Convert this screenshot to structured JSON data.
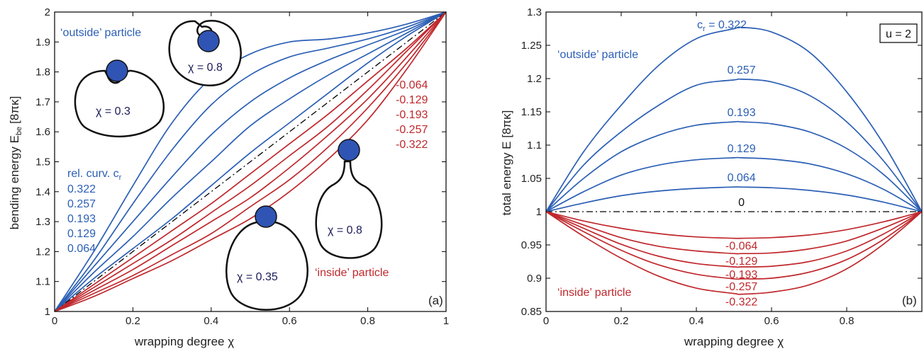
{
  "colors": {
    "outside": "#2b5fb5",
    "inside": "#c0282d",
    "reference": "#000000",
    "particle": "#2f54b4"
  },
  "chart_data": [
    {
      "type": "line",
      "panel_label": "(a)",
      "xlabel": "wrapping degree χ",
      "ylabel_main": "bending energy  E",
      "ylabel_sub": "be",
      "ylabel_unit": "[8πκ]",
      "xlim": [
        0,
        1
      ],
      "ylim": [
        1,
        2
      ],
      "xticks": [
        "0",
        "0.2",
        "0.4",
        "0.6",
        "0.8",
        "1"
      ],
      "yticks": [
        "1",
        "1.1",
        "1.2",
        "1.3",
        "1.4",
        "1.5",
        "1.6",
        "1.7",
        "1.8",
        "1.9",
        "2"
      ],
      "outside_label": "‘outside’ particle",
      "inside_label": "‘inside’ particle",
      "legend_title_main": "rel. curv. c",
      "legend_title_sub": "r",
      "outside_values": [
        "0.322",
        "0.257",
        "0.193",
        "0.129",
        "0.064"
      ],
      "inside_values": [
        "-0.064",
        "-0.129",
        "-0.193",
        "-0.257",
        "-0.322"
      ],
      "insets": [
        {
          "label": "χ = 0.3",
          "kind": "outside"
        },
        {
          "label": "χ = 0.8",
          "kind": "outside"
        },
        {
          "label": "χ = 0.35",
          "kind": "inside"
        },
        {
          "label": "χ = 0.8",
          "kind": "inside"
        }
      ],
      "x": [
        0,
        0.1,
        0.2,
        0.3,
        0.4,
        0.5,
        0.6,
        0.7,
        0.8,
        0.9,
        1.0
      ],
      "series": [
        {
          "c_r": 0.322,
          "kind": "outside",
          "values": [
            1.0,
            1.2,
            1.42,
            1.63,
            1.78,
            1.86,
            1.9,
            1.91,
            1.93,
            1.96,
            2.0
          ]
        },
        {
          "c_r": 0.257,
          "kind": "outside",
          "values": [
            1.0,
            1.17,
            1.36,
            1.54,
            1.69,
            1.79,
            1.85,
            1.88,
            1.91,
            1.95,
            2.0
          ]
        },
        {
          "c_r": 0.193,
          "kind": "outside",
          "values": [
            1.0,
            1.15,
            1.3,
            1.45,
            1.59,
            1.7,
            1.78,
            1.84,
            1.89,
            1.94,
            2.0
          ]
        },
        {
          "c_r": 0.129,
          "kind": "outside",
          "values": [
            1.0,
            1.13,
            1.25,
            1.38,
            1.5,
            1.62,
            1.71,
            1.79,
            1.86,
            1.93,
            2.0
          ]
        },
        {
          "c_r": 0.064,
          "kind": "outside",
          "values": [
            1.0,
            1.11,
            1.21,
            1.31,
            1.42,
            1.53,
            1.63,
            1.73,
            1.83,
            1.92,
            2.0
          ]
        },
        {
          "c_r": 0,
          "kind": "reference",
          "values": [
            1.0,
            1.1,
            1.2,
            1.3,
            1.4,
            1.5,
            1.6,
            1.7,
            1.8,
            1.9,
            2.0
          ]
        },
        {
          "c_r": -0.064,
          "kind": "inside",
          "values": [
            1.0,
            1.09,
            1.18,
            1.27,
            1.36,
            1.46,
            1.56,
            1.66,
            1.77,
            1.88,
            2.0
          ]
        },
        {
          "c_r": -0.129,
          "kind": "inside",
          "values": [
            1.0,
            1.08,
            1.16,
            1.24,
            1.33,
            1.42,
            1.52,
            1.62,
            1.74,
            1.87,
            2.0
          ]
        },
        {
          "c_r": -0.193,
          "kind": "inside",
          "values": [
            1.0,
            1.07,
            1.14,
            1.22,
            1.3,
            1.38,
            1.48,
            1.59,
            1.71,
            1.85,
            2.0
          ]
        },
        {
          "c_r": -0.257,
          "kind": "inside",
          "values": [
            1.0,
            1.06,
            1.12,
            1.19,
            1.26,
            1.35,
            1.44,
            1.55,
            1.68,
            1.83,
            2.0
          ]
        },
        {
          "c_r": -0.322,
          "kind": "inside",
          "values": [
            1.0,
            1.05,
            1.11,
            1.17,
            1.24,
            1.31,
            1.4,
            1.51,
            1.64,
            1.81,
            2.0
          ]
        }
      ]
    },
    {
      "type": "line",
      "panel_label": "(b)",
      "xlabel": "wrapping degree χ",
      "ylabel": "total energy  E  [8πκ]",
      "xlim": [
        0,
        1
      ],
      "ylim": [
        0.85,
        1.3
      ],
      "xticks": [
        "0",
        "0.2",
        "0.4",
        "0.6",
        "0.8"
      ],
      "yticks": [
        "0.85",
        "0.9",
        "0.95",
        "1",
        "1.05",
        "1.1",
        "1.15",
        "1.2",
        "1.25",
        "1.3"
      ],
      "parameter_box": "u = 2",
      "outside_label": "‘outside’ particle",
      "inside_label": "‘inside’ particle",
      "top_label_main": "c",
      "top_label_sub": "r",
      "top_label_value": " = 0.322",
      "x": [
        0,
        0.1,
        0.2,
        0.3,
        0.4,
        0.5,
        0.52,
        0.6,
        0.7,
        0.8,
        0.9,
        1.0
      ],
      "series": [
        {
          "c_r": 0.322,
          "kind": "outside",
          "label": "",
          "values": [
            1.0,
            1.09,
            1.16,
            1.22,
            1.26,
            1.275,
            1.277,
            1.27,
            1.24,
            1.18,
            1.1,
            1.0
          ]
        },
        {
          "c_r": 0.257,
          "kind": "outside",
          "label": "0.257",
          "values": [
            1.0,
            1.07,
            1.12,
            1.16,
            1.19,
            1.198,
            1.199,
            1.195,
            1.175,
            1.135,
            1.075,
            1.0
          ]
        },
        {
          "c_r": 0.193,
          "kind": "outside",
          "label": "0.193",
          "values": [
            1.0,
            1.05,
            1.09,
            1.115,
            1.13,
            1.135,
            1.135,
            1.132,
            1.12,
            1.095,
            1.055,
            1.0
          ]
        },
        {
          "c_r": 0.129,
          "kind": "outside",
          "label": "0.129",
          "values": [
            1.0,
            1.03,
            1.055,
            1.07,
            1.078,
            1.081,
            1.081,
            1.079,
            1.072,
            1.057,
            1.033,
            1.0
          ]
        },
        {
          "c_r": 0.064,
          "kind": "outside",
          "label": "0.064",
          "values": [
            1.0,
            1.013,
            1.024,
            1.031,
            1.035,
            1.037,
            1.037,
            1.036,
            1.032,
            1.025,
            1.014,
            1.0
          ]
        },
        {
          "c_r": 0,
          "kind": "reference",
          "label": "0",
          "values": [
            1.0,
            1.0,
            1.0,
            1.0,
            1.0,
            1.0,
            1.0,
            1.0,
            1.0,
            1.0,
            1.0,
            1.0
          ]
        },
        {
          "c_r": -0.064,
          "kind": "inside",
          "label": "-0.064",
          "values": [
            1.0,
            0.986,
            0.975,
            0.967,
            0.962,
            0.96,
            0.96,
            0.961,
            0.965,
            0.973,
            0.985,
            1.0
          ]
        },
        {
          "c_r": -0.129,
          "kind": "inside",
          "label": "-0.129",
          "values": [
            1.0,
            0.98,
            0.961,
            0.948,
            0.941,
            0.937,
            0.937,
            0.938,
            0.944,
            0.956,
            0.976,
            1.0
          ]
        },
        {
          "c_r": -0.193,
          "kind": "inside",
          "label": "-0.193",
          "values": [
            1.0,
            0.975,
            0.951,
            0.933,
            0.922,
            0.917,
            0.917,
            0.918,
            0.925,
            0.941,
            0.967,
            1.0
          ]
        },
        {
          "c_r": -0.257,
          "kind": "inside",
          "label": "-0.257",
          "values": [
            1.0,
            0.97,
            0.942,
            0.92,
            0.906,
            0.899,
            0.899,
            0.9,
            0.909,
            0.928,
            0.959,
            1.0
          ]
        },
        {
          "c_r": -0.322,
          "kind": "inside",
          "label": "-0.322",
          "values": [
            1.0,
            0.963,
            0.93,
            0.903,
            0.885,
            0.877,
            0.876,
            0.879,
            0.89,
            0.914,
            0.952,
            1.0
          ]
        }
      ]
    }
  ]
}
